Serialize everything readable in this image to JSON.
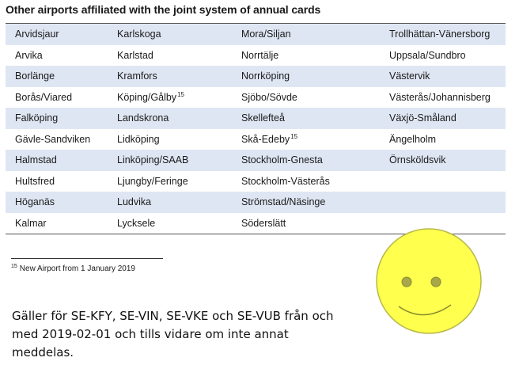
{
  "heading": "Other airports affiliated with the joint system of annual cards",
  "rows": [
    [
      {
        "t": "Arvidsjaur",
        "s": ""
      },
      {
        "t": "Karlskoga",
        "s": ""
      },
      {
        "t": "Mora/Siljan",
        "s": ""
      },
      {
        "t": "Trollhättan-Vänersborg",
        "s": ""
      }
    ],
    [
      {
        "t": "Arvika",
        "s": ""
      },
      {
        "t": "Karlstad",
        "s": ""
      },
      {
        "t": "Norrtälje",
        "s": ""
      },
      {
        "t": "Uppsala/Sundbro",
        "s": ""
      }
    ],
    [
      {
        "t": "Borlänge",
        "s": ""
      },
      {
        "t": "Kramfors",
        "s": ""
      },
      {
        "t": "Norrköping",
        "s": ""
      },
      {
        "t": "Västervik",
        "s": ""
      }
    ],
    [
      {
        "t": "Borås/Viared",
        "s": ""
      },
      {
        "t": "Köping/Gålby",
        "s": "15"
      },
      {
        "t": "Sjöbo/Sövde",
        "s": ""
      },
      {
        "t": "Västerås/Johannisberg",
        "s": ""
      }
    ],
    [
      {
        "t": "Falköping",
        "s": ""
      },
      {
        "t": "Landskrona",
        "s": ""
      },
      {
        "t": "Skellefteå",
        "s": ""
      },
      {
        "t": "Växjö-Småland",
        "s": ""
      }
    ],
    [
      {
        "t": "Gävle-Sandviken",
        "s": ""
      },
      {
        "t": "Lidköping",
        "s": ""
      },
      {
        "t": "Skå-Edeby",
        "s": "15"
      },
      {
        "t": "Ängelholm",
        "s": ""
      }
    ],
    [
      {
        "t": "Halmstad",
        "s": ""
      },
      {
        "t": "Linköping/SAAB",
        "s": ""
      },
      {
        "t": "Stockholm-Gnesta",
        "s": ""
      },
      {
        "t": "Örnsköldsvik",
        "s": ""
      }
    ],
    [
      {
        "t": "Hultsfred",
        "s": ""
      },
      {
        "t": "Ljungby/Feringe",
        "s": ""
      },
      {
        "t": "Stockholm-Västerås",
        "s": ""
      },
      {
        "t": "",
        "s": ""
      }
    ],
    [
      {
        "t": "Höganäs",
        "s": ""
      },
      {
        "t": "Ludvika",
        "s": ""
      },
      {
        "t": "Strömstad/Näsinge",
        "s": ""
      },
      {
        "t": "",
        "s": ""
      }
    ],
    [
      {
        "t": "Kalmar",
        "s": ""
      },
      {
        "t": "Lycksele",
        "s": ""
      },
      {
        "t": "Söderslätt",
        "s": ""
      },
      {
        "t": "",
        "s": ""
      }
    ]
  ],
  "footnote": {
    "number": "15",
    "text": "New Airport from 1 January 2019"
  },
  "notice": "Gäller för SE-KFY, SE-VIN, SE-VKE och SE-VUB från och med 2019-02-01 och tills vidare om inte annat meddelas.",
  "colors": {
    "row_stripe": "#dfe6f3",
    "smiley_fill": "#ffff4d",
    "smiley_outline": "#b8b84a",
    "eye_fill": "#a8a84a"
  },
  "icons": {
    "smiley": "smiley-face-icon"
  }
}
